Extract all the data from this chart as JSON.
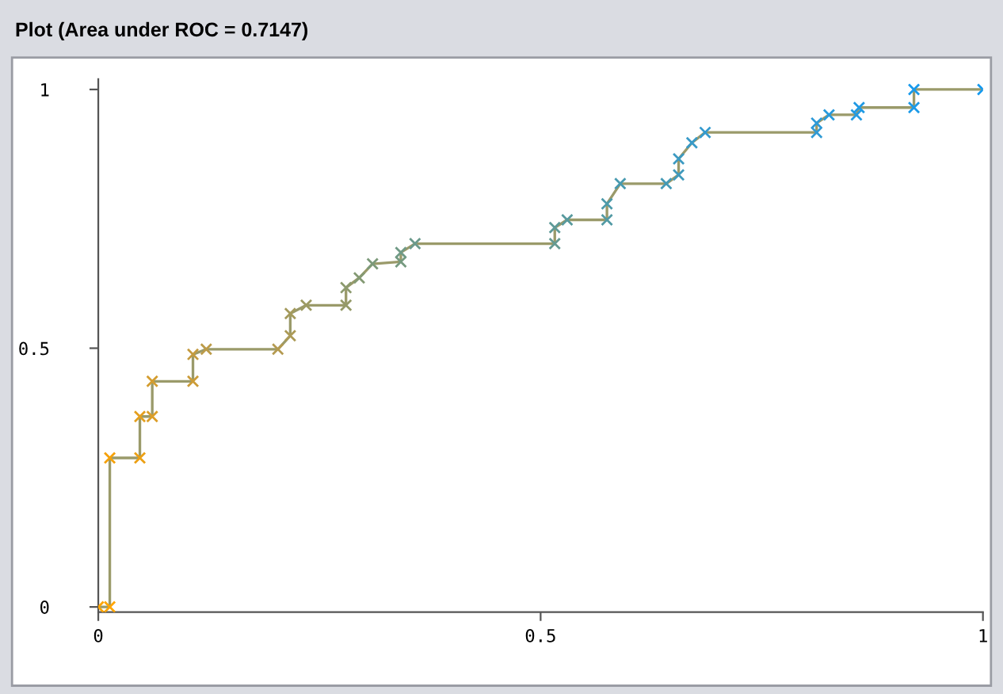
{
  "chart_data": {
    "type": "line",
    "title": "Plot (Area under ROC = 0.7147)",
    "series": [
      {
        "color": "#9a9a6a",
        "x": [
          0,
          0.013,
          0.013,
          0.047,
          0.047,
          0.061,
          0.061,
          0.107,
          0.107,
          0.122,
          0.203,
          0.217,
          0.217,
          0.235,
          0.28,
          0.28,
          0.295,
          0.31,
          0.342,
          0.342,
          0.358,
          0.516,
          0.516,
          0.53,
          0.575,
          0.575,
          0.59,
          0.642,
          0.656,
          0.656,
          0.671,
          0.686,
          0.812,
          0.812,
          0.826,
          0.857,
          0.86,
          0.922,
          0.922,
          1
        ],
        "values": [
          0,
          0,
          0.288,
          0.288,
          0.368,
          0.368,
          0.436,
          0.436,
          0.488,
          0.498,
          0.498,
          0.524,
          0.567,
          0.583,
          0.583,
          0.617,
          0.636,
          0.663,
          0.667,
          0.685,
          0.702,
          0.702,
          0.733,
          0.748,
          0.748,
          0.779,
          0.818,
          0.818,
          0.835,
          0.866,
          0.897,
          0.917,
          0.917,
          0.935,
          0.951,
          0.951,
          0.965,
          0.965,
          1,
          1
        ],
        "colors": [
          "#ffa500",
          "#ffa500",
          "#f5a10a",
          "#eca014",
          "#e49f1e",
          "#dc9e28",
          "#d49d30",
          "#cc9c38",
          "#c49b40",
          "#bc9b48",
          "#b49a50",
          "#ac9a56",
          "#a49a5c",
          "#9c9a62",
          "#949a68",
          "#8c9a6e",
          "#849a74",
          "#7c9a7a",
          "#769a80",
          "#709a86",
          "#6a9a8c",
          "#649a92",
          "#5e9a98",
          "#589a9e",
          "#529aa4",
          "#4c9aaa",
          "#489ab0",
          "#449ab6",
          "#409abc",
          "#3c9ac2",
          "#389ac8",
          "#349ace",
          "#309ad4",
          "#2c9ad8",
          "#289adc",
          "#249ae0",
          "#209ae4",
          "#1c9ae8",
          "#189aec",
          "#149af0"
        ]
      }
    ],
    "xlim": [
      0,
      1
    ],
    "ylim": [
      -0.01,
      1.02
    ],
    "xticks": [
      0,
      0.5,
      1
    ],
    "yticks": [
      0,
      0.5,
      1
    ],
    "grid": false,
    "legend": false,
    "marker": "cross",
    "line_style": "solid"
  }
}
